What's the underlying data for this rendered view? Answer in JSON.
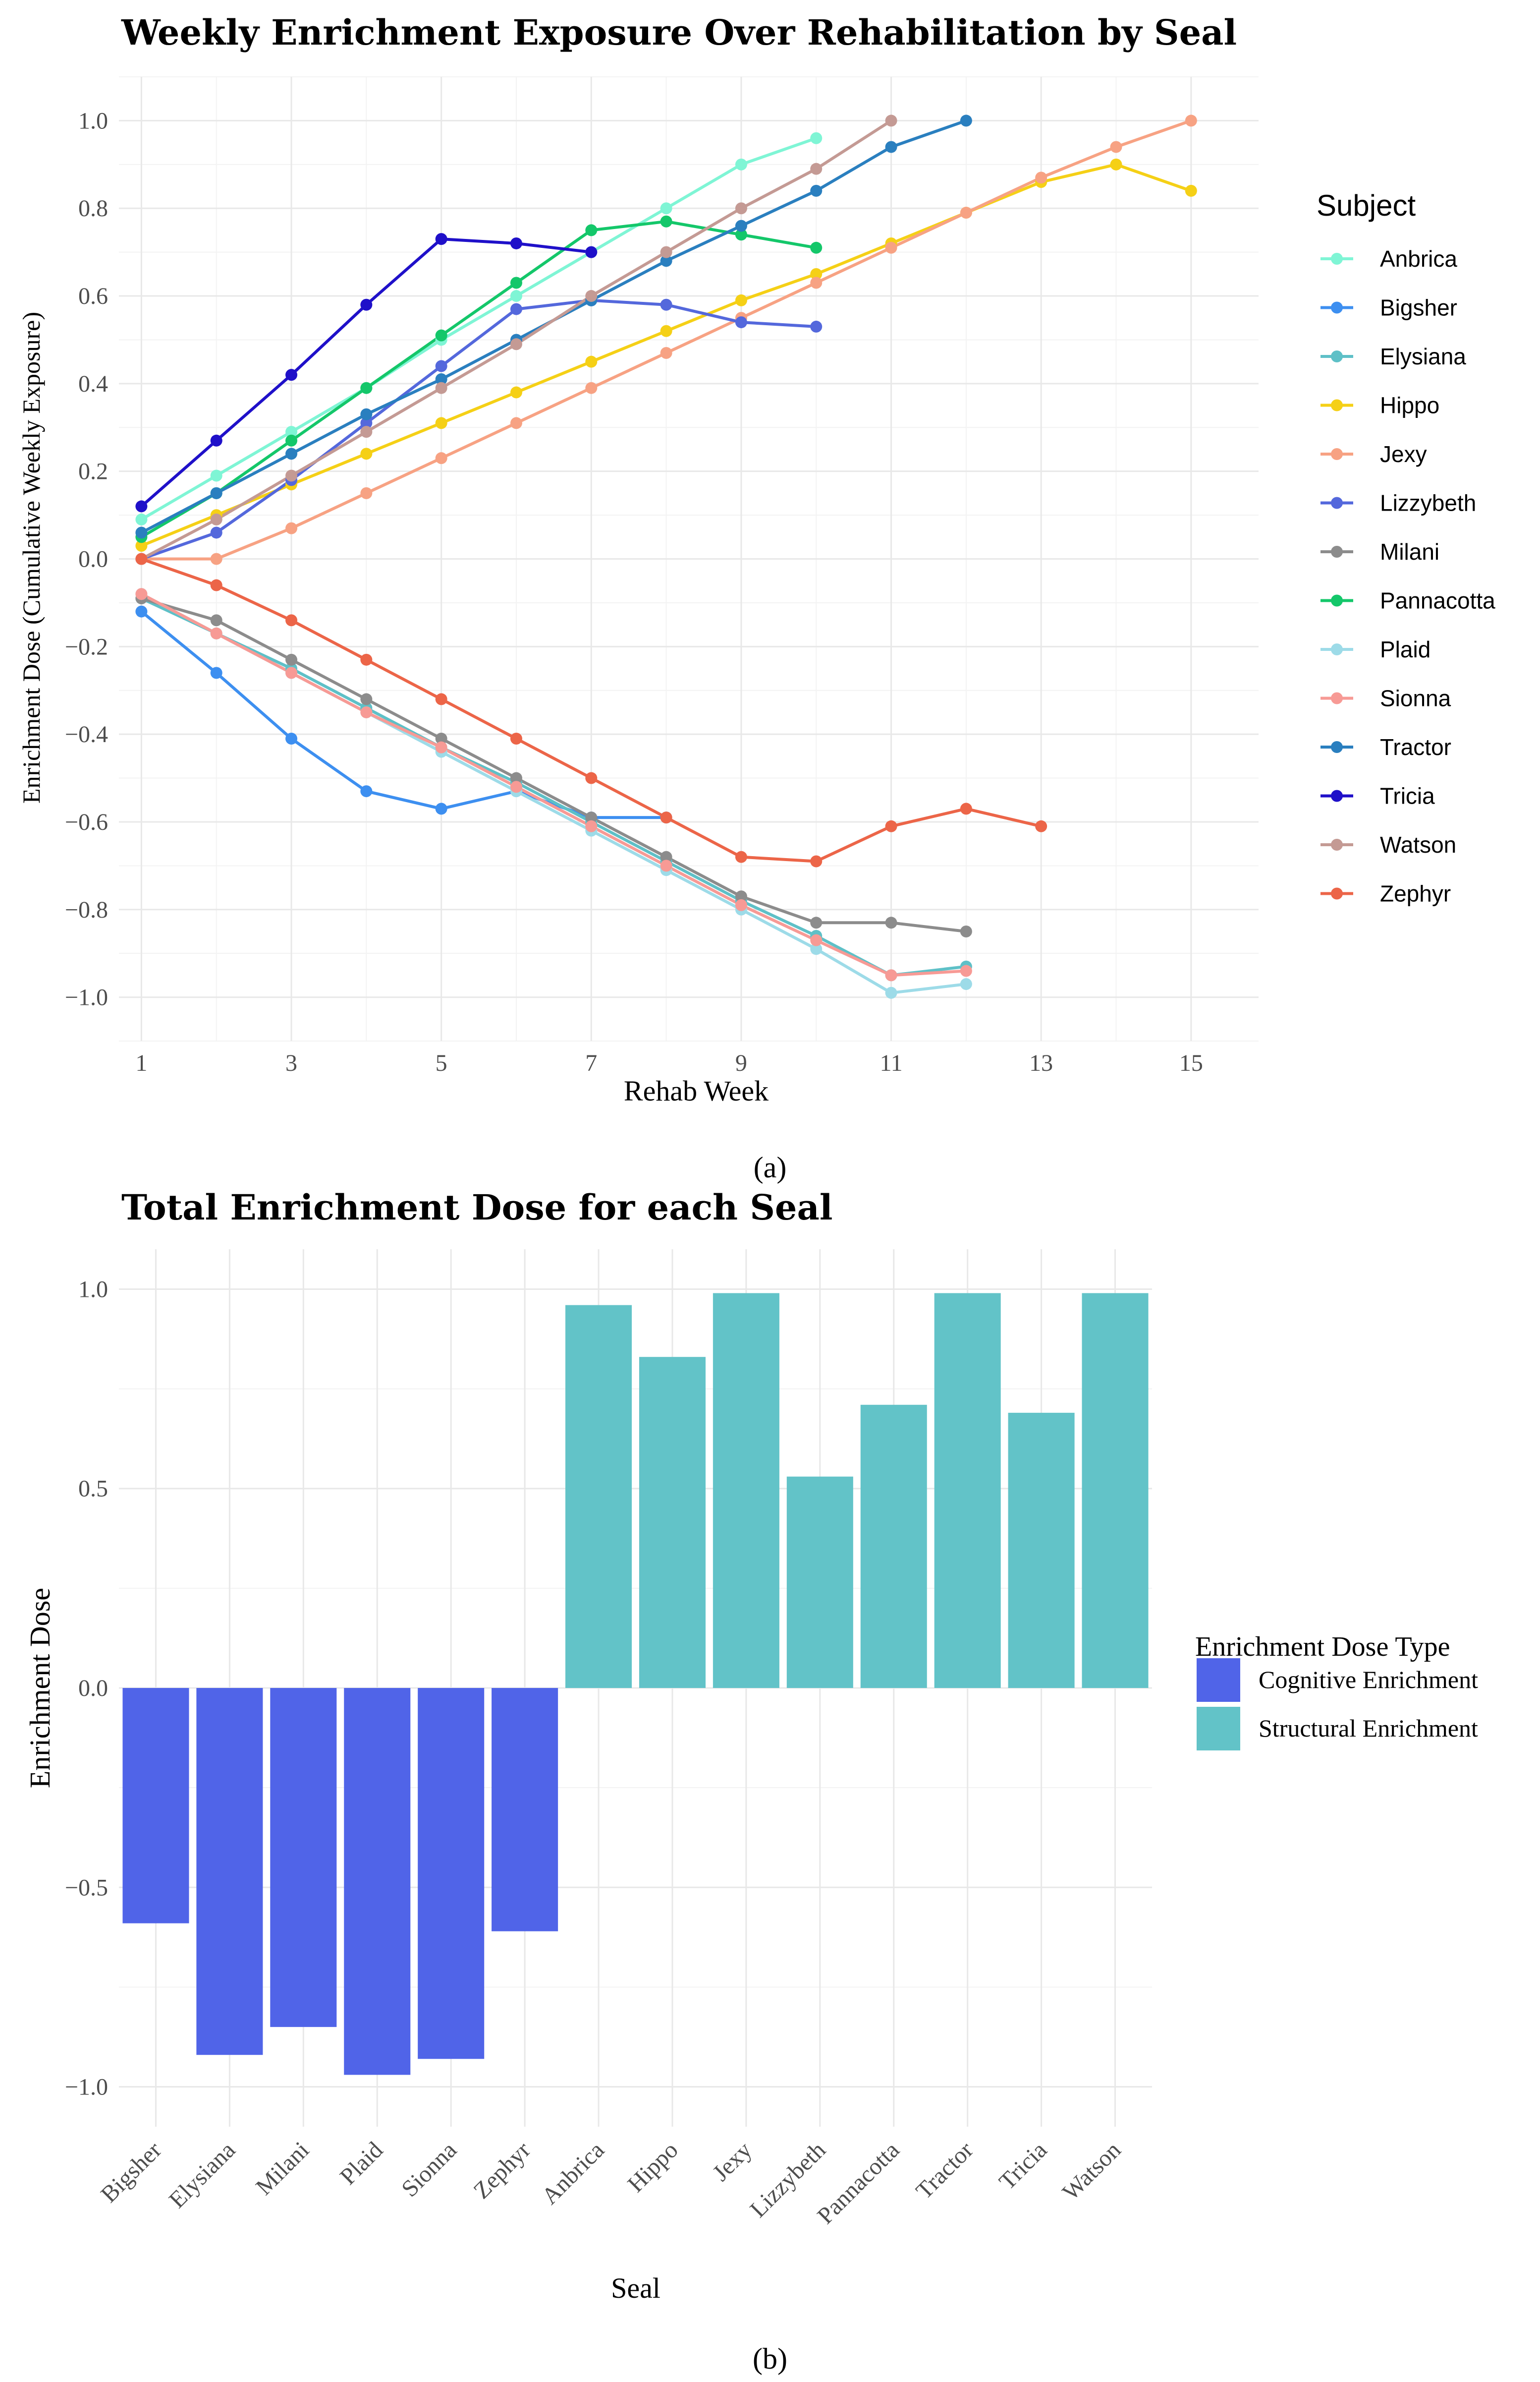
{
  "chart_data": [
    {
      "type": "line",
      "title": "Weekly Enrichment Exposure Over Rehabilitation by Seal",
      "xlabel": "Rehab Week",
      "ylabel": "Enrichment Dose (Cumulative Weekly Exposure)",
      "xlim": [
        0.7,
        15.9
      ],
      "ylim": [
        -1.1,
        1.1
      ],
      "x_ticks": [
        1,
        3,
        5,
        7,
        9,
        11,
        13,
        15
      ],
      "y_ticks": [
        -1.0,
        -0.8,
        -0.6,
        -0.4,
        -0.2,
        0.0,
        0.2,
        0.4,
        0.6,
        0.8,
        1.0
      ],
      "grid": true,
      "legend_title": "Subject",
      "legend_position": "right",
      "series": [
        {
          "name": "Anbrica",
          "color": "#7ff5d5",
          "x": [
            1,
            2,
            3,
            4,
            5,
            6,
            7,
            8,
            9,
            10
          ],
          "y": [
            0.09,
            0.19,
            0.29,
            0.39,
            0.5,
            0.6,
            0.7,
            0.8,
            0.9,
            0.96
          ]
        },
        {
          "name": "Bigsher",
          "color": "#3d8ff0",
          "x": [
            1,
            2,
            3,
            4,
            5,
            6,
            7,
            8
          ],
          "y": [
            -0.12,
            -0.26,
            -0.41,
            -0.53,
            -0.57,
            -0.53,
            -0.59,
            -0.59
          ]
        },
        {
          "name": "Elysiana",
          "color": "#5ec0c7",
          "x": [
            1,
            2,
            3,
            4,
            5,
            6,
            7,
            8,
            9,
            10,
            11,
            12
          ],
          "y": [
            -0.09,
            -0.17,
            -0.25,
            -0.34,
            -0.43,
            -0.51,
            -0.6,
            -0.69,
            -0.78,
            -0.86,
            -0.95,
            -0.93
          ]
        },
        {
          "name": "Hippo",
          "color": "#f5d016",
          "x": [
            1,
            2,
            3,
            4,
            5,
            6,
            7,
            8,
            9,
            10,
            11,
            12,
            13,
            14,
            15
          ],
          "y": [
            0.03,
            0.1,
            0.17,
            0.24,
            0.31,
            0.38,
            0.45,
            0.52,
            0.59,
            0.65,
            0.72,
            0.79,
            0.86,
            0.9,
            0.84
          ]
        },
        {
          "name": "Jexy",
          "color": "#f7a283",
          "x": [
            1,
            2,
            3,
            4,
            5,
            6,
            7,
            8,
            9,
            10,
            11,
            12,
            13,
            14,
            15
          ],
          "y": [
            0.0,
            0.0,
            0.07,
            0.15,
            0.23,
            0.31,
            0.39,
            0.47,
            0.55,
            0.63,
            0.71,
            0.79,
            0.87,
            0.94,
            1.0
          ]
        },
        {
          "name": "Lizzybeth",
          "color": "#5468dc",
          "x": [
            1,
            2,
            3,
            4,
            5,
            6,
            7,
            8,
            9,
            10
          ],
          "y": [
            0.0,
            0.06,
            0.18,
            0.31,
            0.44,
            0.57,
            0.59,
            0.58,
            0.54,
            0.53
          ]
        },
        {
          "name": "Milani",
          "color": "#8c8c8c",
          "x": [
            1,
            2,
            3,
            4,
            5,
            6,
            7,
            8,
            9,
            10,
            11,
            12
          ],
          "y": [
            -0.09,
            -0.14,
            -0.23,
            -0.32,
            -0.41,
            -0.5,
            -0.59,
            -0.68,
            -0.77,
            -0.83,
            -0.83,
            -0.85
          ]
        },
        {
          "name": "Pannacotta",
          "color": "#14c76a",
          "x": [
            1,
            2,
            3,
            4,
            5,
            6,
            7,
            8,
            9,
            10
          ],
          "y": [
            0.05,
            0.15,
            0.27,
            0.39,
            0.51,
            0.63,
            0.75,
            0.77,
            0.74,
            0.71
          ]
        },
        {
          "name": "Plaid",
          "color": "#9ddbe8",
          "x": [
            1,
            2,
            3,
            4,
            5,
            6,
            7,
            8,
            9,
            10,
            11,
            12
          ],
          "y": [
            -0.08,
            -0.17,
            -0.26,
            -0.35,
            -0.44,
            -0.53,
            -0.62,
            -0.71,
            -0.8,
            -0.89,
            -0.99,
            -0.97
          ]
        },
        {
          "name": "Sionna",
          "color": "#f79a95",
          "x": [
            1,
            2,
            3,
            4,
            5,
            6,
            7,
            8,
            9,
            10,
            11,
            12
          ],
          "y": [
            -0.08,
            -0.17,
            -0.26,
            -0.35,
            -0.43,
            -0.52,
            -0.61,
            -0.7,
            -0.79,
            -0.87,
            -0.95,
            -0.94
          ]
        },
        {
          "name": "Tractor",
          "color": "#2a7fbf",
          "x": [
            1,
            2,
            3,
            4,
            5,
            6,
            7,
            8,
            9,
            10,
            11,
            12
          ],
          "y": [
            0.06,
            0.15,
            0.24,
            0.33,
            0.41,
            0.5,
            0.59,
            0.68,
            0.76,
            0.84,
            0.94,
            1.0
          ]
        },
        {
          "name": "Tricia",
          "color": "#1f10c9",
          "x": [
            1,
            2,
            3,
            4,
            5,
            6,
            7
          ],
          "y": [
            0.12,
            0.27,
            0.42,
            0.58,
            0.73,
            0.72,
            0.7
          ]
        },
        {
          "name": "Watson",
          "color": "#c49a94",
          "x": [
            1,
            2,
            3,
            4,
            5,
            6,
            7,
            8,
            9,
            10,
            11
          ],
          "y": [
            0.0,
            0.09,
            0.19,
            0.29,
            0.39,
            0.49,
            0.6,
            0.7,
            0.8,
            0.89,
            1.0
          ]
        },
        {
          "name": "Zephyr",
          "color": "#ec6548",
          "x": [
            1,
            2,
            3,
            4,
            5,
            6,
            7,
            8,
            9,
            10,
            11,
            12,
            13
          ],
          "y": [
            0.0,
            -0.06,
            -0.14,
            -0.23,
            -0.32,
            -0.41,
            -0.5,
            -0.59,
            -0.68,
            -0.69,
            -0.61,
            -0.57,
            -0.61
          ]
        }
      ]
    },
    {
      "type": "bar",
      "title": "Total Enrichment Dose for each Seal",
      "xlabel": "Seal",
      "ylabel": "Enrichment Dose",
      "ylim": [
        -1.1,
        1.1
      ],
      "y_ticks": [
        -1.0,
        -0.5,
        0.0,
        0.5,
        1.0
      ],
      "grid": true,
      "legend_title": "Enrichment Dose Type",
      "legend_position": "right",
      "categories": [
        "Bigsher",
        "Elysiana",
        "Milani",
        "Plaid",
        "Sionna",
        "Zephyr",
        "Anbrica",
        "Hippo",
        "Jexy",
        "Lizzybeth",
        "Pannacotta",
        "Tractor",
        "Tricia",
        "Watson"
      ],
      "values": [
        -0.59,
        -0.92,
        -0.85,
        -0.97,
        -0.93,
        -0.61,
        0.96,
        0.83,
        0.99,
        0.53,
        0.71,
        0.99,
        0.69,
        0.99
      ],
      "types": [
        "Cognitive Enrichment",
        "Cognitive Enrichment",
        "Cognitive Enrichment",
        "Cognitive Enrichment",
        "Cognitive Enrichment",
        "Cognitive Enrichment",
        "Structural Enrichment",
        "Structural Enrichment",
        "Structural Enrichment",
        "Structural Enrichment",
        "Structural Enrichment",
        "Structural Enrichment",
        "Structural Enrichment",
        "Structural Enrichment"
      ],
      "legend": [
        {
          "name": "Cognitive Enrichment",
          "color": "#5064e8"
        },
        {
          "name": "Structural Enrichment",
          "color": "#62c3c8"
        }
      ]
    }
  ],
  "captions": {
    "a": "(a)",
    "b": "(b)"
  }
}
